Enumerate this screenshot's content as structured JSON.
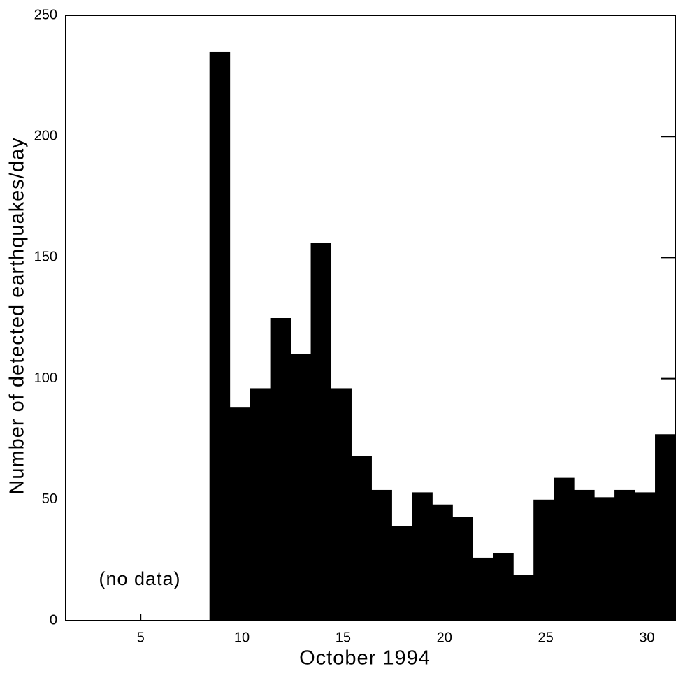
{
  "chart_data": {
    "type": "histogram",
    "xlabel": "October 1994",
    "ylabel": "Number of detected earthquakes/day",
    "annotation": "(no data)",
    "bins": [
      8.4,
      9.4,
      10.4,
      11.4,
      12.4,
      13.4,
      14.4,
      15.4,
      16.4,
      17.4,
      18.4,
      19.4,
      20.4,
      21.4,
      22.4,
      23.4,
      24.4,
      25.4,
      26.4,
      27.4,
      28.4,
      29.4,
      30.4,
      31.4
    ],
    "counts": [
      235,
      88,
      96,
      125,
      110,
      156,
      96,
      68,
      54,
      39,
      53,
      48,
      43,
      26,
      28,
      19,
      50,
      59,
      54,
      51,
      54,
      53,
      77
    ],
    "color": "#000000",
    "xlim": [
      1.3,
      31.4
    ],
    "xticks": [
      5,
      10,
      15,
      20,
      25,
      30
    ],
    "ylim": [
      0,
      250
    ],
    "yticks": [
      0,
      50,
      100,
      150,
      200,
      250
    ]
  }
}
